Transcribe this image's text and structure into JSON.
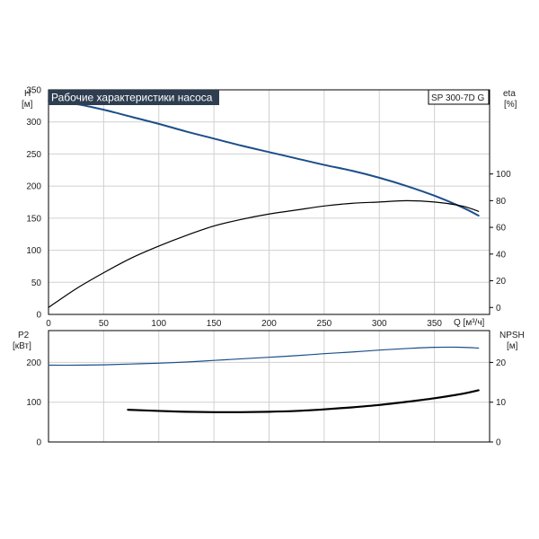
{
  "chart_data": [
    {
      "type": "line",
      "title": "Рабочие характеристики насоса",
      "model_label": "SP 300-7D G",
      "xlabel": "Q [м³/ч]",
      "xlim": [
        0,
        400
      ],
      "x_ticks": [
        0,
        50,
        100,
        150,
        200,
        250,
        300,
        350
      ],
      "ylabel_left": [
        "H",
        "[м]"
      ],
      "ylim_left": [
        0,
        350
      ],
      "y_ticks_left": [
        0,
        50,
        100,
        150,
        200,
        250,
        300,
        350
      ],
      "ylabel_right": [
        "eta",
        "[%]"
      ],
      "ylim_right": [
        -5.2,
        163
      ],
      "y_ticks_right": [
        0,
        20,
        40,
        60,
        80,
        100
      ],
      "grid": true,
      "series": [
        {
          "axis": "left",
          "color": "#1c4e8a",
          "x": [
            0,
            25,
            50,
            75,
            100,
            125,
            150,
            175,
            200,
            225,
            250,
            275,
            300,
            325,
            350,
            375,
            390
          ],
          "y": [
            333,
            328,
            319,
            308,
            297,
            285,
            274,
            263,
            253,
            243,
            233,
            224,
            213,
            200,
            185,
            167,
            154
          ]
        },
        {
          "axis": "right",
          "color": "#000000",
          "x": [
            0,
            25,
            50,
            75,
            100,
            125,
            150,
            175,
            200,
            225,
            250,
            275,
            300,
            325,
            350,
            375,
            390
          ],
          "y": [
            0,
            14,
            26,
            37,
            46,
            54,
            61,
            66,
            70,
            73,
            76,
            78,
            79,
            80,
            79,
            76,
            72
          ]
        }
      ]
    },
    {
      "type": "line",
      "xlim": [
        0,
        400
      ],
      "ylabel_left": [
        "P2",
        "[кВт]"
      ],
      "ylim_left": [
        0,
        280
      ],
      "y_ticks_left": [
        0,
        100,
        200
      ],
      "ylabel_right": [
        "NPSH",
        "[м]"
      ],
      "ylim_right": [
        0,
        28
      ],
      "y_ticks_right": [
        0,
        10,
        20
      ],
      "grid": true,
      "series": [
        {
          "axis": "left",
          "color": "#1c4e8a",
          "x": [
            0,
            25,
            50,
            75,
            100,
            125,
            150,
            175,
            200,
            225,
            250,
            275,
            300,
            325,
            350,
            375,
            390
          ],
          "y": [
            193,
            193,
            194,
            196,
            198,
            201,
            205,
            209,
            213,
            217,
            222,
            226,
            231,
            235,
            238,
            238,
            236
          ]
        },
        {
          "axis": "right",
          "color": "#000000",
          "x": [
            72,
            100,
            125,
            150,
            175,
            200,
            225,
            250,
            275,
            300,
            325,
            350,
            375,
            390
          ],
          "y": [
            8.1,
            7.8,
            7.6,
            7.5,
            7.5,
            7.6,
            7.8,
            8.2,
            8.7,
            9.3,
            10.1,
            11,
            12.1,
            13
          ]
        }
      ]
    }
  ]
}
